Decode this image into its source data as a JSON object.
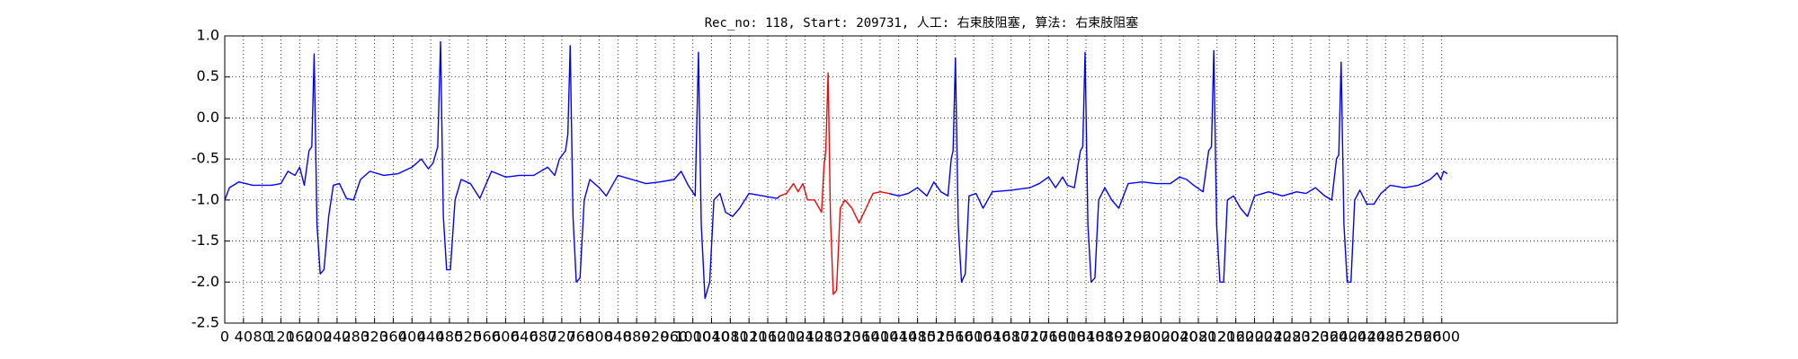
{
  "chart_data": {
    "type": "line",
    "title": "Rec_no: 118, Start: 209731, 人工: 右束肢阻塞, 算法: 右束肢阻塞",
    "xlim": [
      0,
      2975
    ],
    "xticks": [
      0,
      40,
      80,
      120,
      160,
      200,
      240,
      280,
      320,
      360,
      400,
      440,
      480,
      520,
      560,
      600,
      640,
      680,
      720,
      760,
      800,
      840,
      880,
      920,
      960,
      1000,
      1040,
      1080,
      1120,
      1160,
      1200,
      1240,
      1280,
      1320,
      1360,
      1400,
      1440,
      1480,
      1520,
      1560,
      1600,
      1640,
      1680,
      1720,
      1760,
      1800,
      1840,
      1880,
      1920,
      1960,
      2000,
      2040,
      2080,
      2120,
      2160,
      2200,
      2240,
      2280,
      2320,
      2360,
      2400,
      2440,
      2480,
      2520,
      2560,
      2600
    ],
    "ylim": [
      -2.5,
      1.0
    ],
    "yticks": [
      {
        "value": -2.5,
        "label": "-2.5"
      },
      {
        "value": -2,
        "label": "-2.0"
      },
      {
        "value": -1.5,
        "label": "-1.5"
      },
      {
        "value": -1,
        "label": "-1.0"
      },
      {
        "value": -0.5,
        "label": "-0.5"
      },
      {
        "value": 0,
        "label": "0.0"
      },
      {
        "value": 0.5,
        "label": "0.5"
      },
      {
        "value": 1,
        "label": "1.0"
      }
    ],
    "grid": true,
    "series": [
      {
        "color": "#0000ff",
        "x": [
          0,
          10,
          30,
          60,
          100,
          120,
          135,
          150,
          160,
          170,
          180,
          186,
          191,
          197,
          204,
          212,
          222,
          232,
          245,
          260,
          275,
          290,
          310,
          340,
          370,
          400,
          420,
          435,
          445,
          455,
          461,
          467,
          474,
          482,
          492,
          505,
          525,
          545,
          570,
          600,
          630,
          660,
          690,
          705,
          715,
          728,
          733,
          738,
          744,
          751,
          759,
          768,
          780,
          800,
          815,
          840,
          870,
          900,
          930,
          960,
          975,
          990,
          1005,
          1012,
          1018,
          1026,
          1036,
          1045,
          1058,
          1070,
          1085,
          1100,
          1120,
          1150,
          1180,
          1186,
          1300,
          1419,
          1440,
          1460,
          1480,
          1500,
          1515,
          1530,
          1545,
          1552,
          1556,
          1561,
          1567,
          1574,
          1582,
          1590,
          1605,
          1620,
          1640,
          1680,
          1720,
          1740,
          1760,
          1775,
          1790,
          1800,
          1815,
          1828,
          1833,
          1838,
          1844,
          1851,
          1859,
          1867,
          1880,
          1895,
          1910,
          1930,
          1960,
          1990,
          2020,
          2040,
          2055,
          2070,
          2090,
          2102,
          2108,
          2113,
          2119,
          2126,
          2134,
          2142,
          2155,
          2170,
          2185,
          2200,
          2230,
          2260,
          2290,
          2310,
          2330,
          2350,
          2365,
          2375,
          2380,
          2385,
          2391,
          2398,
          2406,
          2414,
          2425,
          2440,
          2455,
          2470,
          2490,
          2520,
          2550,
          2575,
          2590,
          2598,
          2604,
          2612
        ],
        "values": [
          -1.0,
          -0.85,
          -0.78,
          -0.82,
          -0.82,
          -0.8,
          -0.65,
          -0.7,
          -0.6,
          -0.82,
          -0.4,
          -0.35,
          0.78,
          -1.3,
          -1.9,
          -1.85,
          -1.2,
          -0.82,
          -0.8,
          -0.98,
          -1.0,
          -0.75,
          -0.65,
          -0.7,
          -0.68,
          -0.6,
          -0.5,
          -0.62,
          -0.55,
          -0.35,
          0.93,
          -1.2,
          -1.85,
          -1.85,
          -1.0,
          -0.75,
          -0.8,
          -0.98,
          -0.65,
          -0.72,
          -0.7,
          -0.7,
          -0.6,
          -0.7,
          -0.5,
          -0.4,
          -0.2,
          0.88,
          -1.2,
          -2.0,
          -1.95,
          -1.0,
          -0.75,
          -0.85,
          -0.95,
          -0.7,
          -0.75,
          -0.8,
          -0.78,
          -0.75,
          -0.65,
          -0.82,
          -0.95,
          0.8,
          -1.3,
          -2.2,
          -2.0,
          -1.0,
          -0.92,
          -1.15,
          -1.2,
          -1.1,
          -0.92,
          -0.95,
          -0.98,
          -0.95,
          null,
          -0.92,
          -0.95,
          -0.92,
          -0.85,
          -0.95,
          -0.78,
          -0.9,
          -0.95,
          -0.5,
          -0.4,
          0.73,
          -1.3,
          -2.0,
          -1.9,
          -0.95,
          -0.92,
          -1.1,
          -0.9,
          -0.88,
          -0.85,
          -0.8,
          -0.72,
          -0.85,
          -0.72,
          -0.82,
          -0.85,
          -0.4,
          -0.35,
          0.8,
          -1.3,
          -2.0,
          -1.95,
          -1.0,
          -0.85,
          -1.0,
          -1.1,
          -0.8,
          -0.78,
          -0.8,
          -0.8,
          -0.72,
          -0.75,
          -0.82,
          -0.9,
          -0.4,
          -0.35,
          0.82,
          -1.3,
          -2.0,
          -2.0,
          -1.0,
          -0.95,
          -1.1,
          -1.2,
          -0.95,
          -0.9,
          -0.95,
          -0.9,
          -0.92,
          -0.85,
          -0.95,
          -1.0,
          -0.5,
          -0.45,
          0.68,
          -1.3,
          -2.0,
          -2.0,
          -1.0,
          -0.88,
          -1.05,
          -1.05,
          -0.92,
          -0.82,
          -0.85,
          -0.82,
          -0.75,
          -0.67,
          -0.75,
          -0.65,
          -0.68
        ]
      },
      {
        "color": "#ff0000",
        "x": [
          1186,
          1200,
          1215,
          1225,
          1235,
          1245,
          1260,
          1275,
          1280,
          1284,
          1289,
          1294,
          1300,
          1307,
          1315,
          1325,
          1340,
          1355,
          1370,
          1385,
          1400,
          1419
        ],
        "values": [
          -0.95,
          -0.92,
          -0.8,
          -0.9,
          -0.8,
          -1.0,
          -1.0,
          -1.15,
          -0.6,
          -0.4,
          0.55,
          -1.2,
          -2.15,
          -2.1,
          -1.1,
          -1.0,
          -1.1,
          -1.28,
          -1.1,
          -0.92,
          -0.9,
          -0.92
        ]
      }
    ]
  }
}
